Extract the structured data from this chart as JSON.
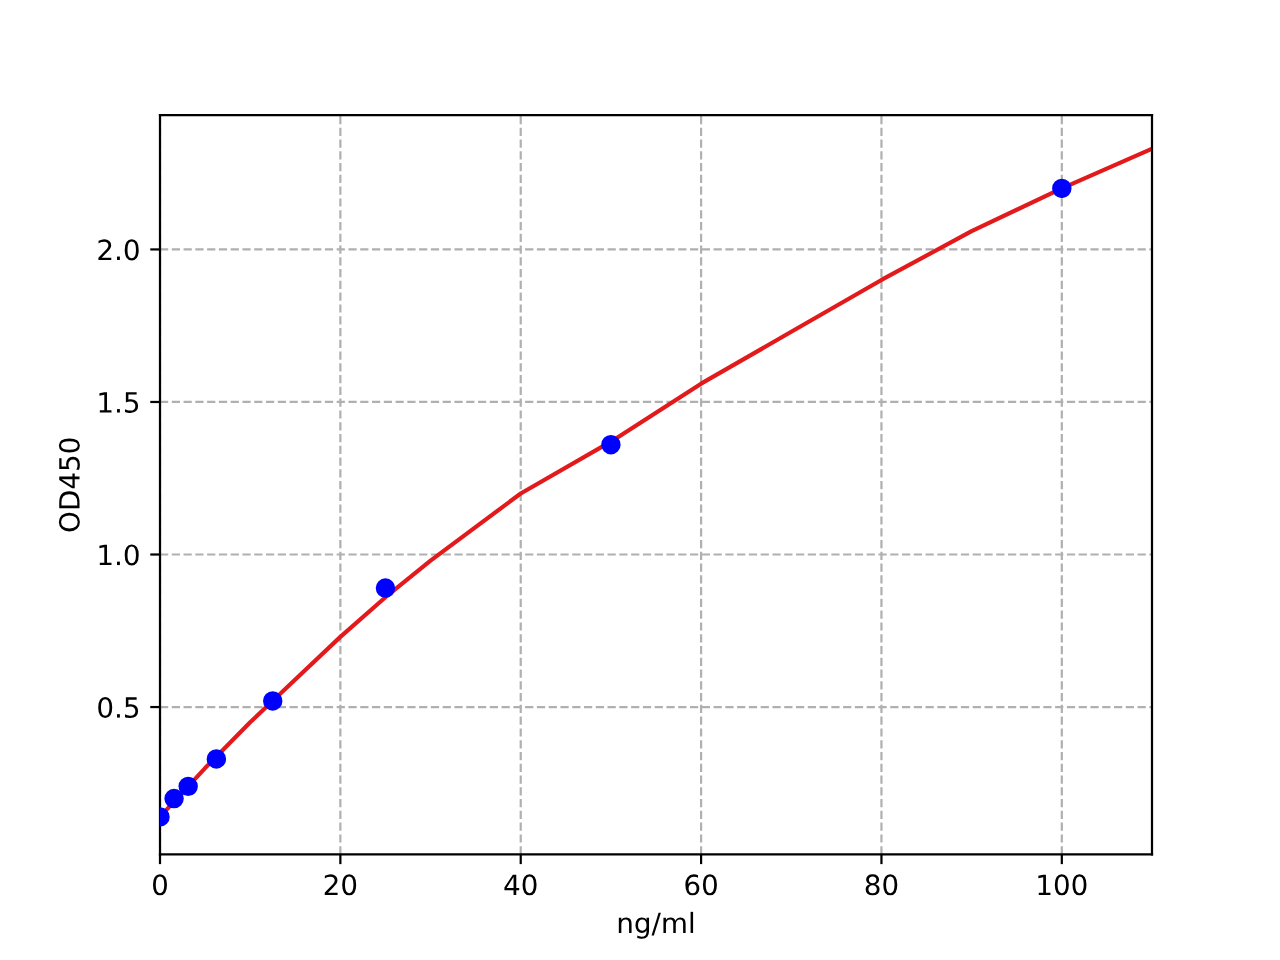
{
  "chart_data": {
    "type": "scatter",
    "xlabel": "ng/ml",
    "ylabel": "OD450",
    "xlim": [
      0,
      110
    ],
    "ylim": [
      0.017,
      2.44
    ],
    "xticks": [
      0,
      20,
      40,
      60,
      80,
      100
    ],
    "yticks": [
      {
        "value": 0.5,
        "label": "0.5"
      },
      {
        "value": 1.0,
        "label": "1.0"
      },
      {
        "value": 1.5,
        "label": "1.5"
      },
      {
        "value": 2.0,
        "label": "2.0"
      }
    ],
    "grid": true,
    "series": [
      {
        "type": "line",
        "color": "#e31a1c",
        "x": [
          0,
          5,
          10,
          15,
          20,
          25,
          30,
          40,
          50,
          60,
          70,
          80,
          90,
          100,
          110
        ],
        "values": [
          0.14,
          0.3,
          0.45,
          0.59,
          0.73,
          0.86,
          0.98,
          1.2,
          1.37,
          1.56,
          1.73,
          1.9,
          2.06,
          2.2,
          2.33
        ]
      },
      {
        "color": "#0000ff",
        "marker": "circle",
        "x": [
          0,
          1.56,
          3.125,
          6.25,
          12.5,
          25,
          50,
          100
        ],
        "values": [
          0.14,
          0.2,
          0.24,
          0.33,
          0.52,
          0.89,
          1.36,
          2.2
        ]
      }
    ]
  }
}
